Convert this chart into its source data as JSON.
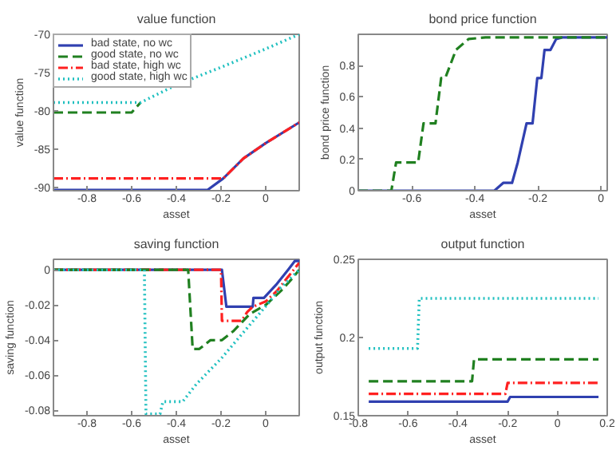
{
  "chart_data": [
    {
      "type": "line",
      "title": "value function",
      "xlabel": "asset",
      "ylabel": "value function",
      "xlim": [
        -0.95,
        0.15
      ],
      "xticks": [
        -0.8,
        -0.6,
        -0.4,
        -0.2,
        0
      ],
      "ylim": [
        -90.4,
        -70
      ],
      "yticks": [
        -90,
        -85,
        -80,
        -75,
        -70
      ],
      "grid": false,
      "legend": "top left",
      "series": [
        {
          "name": "bad state, no wc",
          "color": "#3040b0",
          "line_style": "solid",
          "x": [
            -0.95,
            -0.26,
            -0.19,
            -0.1,
            0,
            0.15
          ],
          "values": [
            -90.3,
            -90.3,
            -88.8,
            -86.2,
            -84.2,
            -81.5
          ]
        },
        {
          "name": "good state, no wc",
          "color": "#208020",
          "line_style": "dashed",
          "x": [
            -0.95,
            -0.6,
            -0.56
          ],
          "values": [
            -80.2,
            -80.2,
            -78.9
          ]
        },
        {
          "name": "bad state, high wc",
          "color": "#ff2020",
          "line_style": "dashdot",
          "x": [
            -0.95,
            -0.19,
            -0.1,
            0,
            0.15
          ],
          "values": [
            -88.8,
            -88.8,
            -86.2,
            -84.2,
            -81.5
          ]
        },
        {
          "name": "good state, high wc",
          "color": "#20c0c0",
          "line_style": "dotted",
          "x": [
            -0.95,
            -0.56,
            -0.4,
            -0.2,
            0,
            0.15
          ],
          "values": [
            -78.9,
            -78.9,
            -76.6,
            -74.3,
            -71.9,
            -70
          ]
        }
      ]
    },
    {
      "type": "line",
      "title": "bond price function",
      "xlabel": "asset",
      "ylabel": "bond price function",
      "xlim": [
        -0.77,
        0.02
      ],
      "xticks": [
        -0.6,
        -0.4,
        -0.2,
        0
      ],
      "ylim": [
        0,
        1
      ],
      "yticks": [
        0,
        0.2,
        0.4,
        0.6,
        0.8
      ],
      "grid": false,
      "series": [
        {
          "color": "#3040b0",
          "line_style": "solid",
          "x": [
            -0.77,
            -0.338,
            -0.31,
            -0.282,
            -0.264,
            -0.236,
            -0.217,
            -0.202,
            -0.189,
            -0.179,
            -0.16,
            -0.142,
            -0.123,
            0.02
          ],
          "values": [
            0,
            0,
            0.05,
            0.05,
            0.18,
            0.43,
            0.43,
            0.72,
            0.72,
            0.9,
            0.9,
            0.97,
            0.98,
            0.98
          ]
        },
        {
          "color": "#208020",
          "line_style": "dashed",
          "x": [
            -0.77,
            -0.665,
            -0.65,
            -0.58,
            -0.563,
            -0.525,
            -0.507,
            -0.494,
            -0.46,
            -0.42,
            -0.366,
            0.02
          ],
          "values": [
            0,
            0,
            0.18,
            0.18,
            0.43,
            0.43,
            0.72,
            0.72,
            0.9,
            0.97,
            0.98,
            0.98
          ]
        }
      ]
    },
    {
      "type": "line",
      "title": "saving function",
      "xlabel": "asset",
      "ylabel": "saving function",
      "xlim": [
        -0.95,
        0.15
      ],
      "xticks": [
        -0.8,
        -0.6,
        -0.4,
        -0.2,
        0
      ],
      "ylim": [
        -0.083,
        0.006
      ],
      "yticks": [
        -0.08,
        -0.06,
        -0.04,
        -0.02,
        0
      ],
      "grid": false,
      "series": [
        {
          "color": "#3040b0",
          "line_style": "solid",
          "x": [
            -0.95,
            -0.196,
            -0.176,
            -0.058,
            -0.055,
            -0.008,
            0.05,
            0.1,
            0.13,
            0.15
          ],
          "values": [
            0,
            0,
            -0.021,
            -0.021,
            -0.016,
            -0.016,
            -0.008,
            0,
            0.005,
            0.005
          ]
        },
        {
          "color": "#ff2020",
          "line_style": "dashdot",
          "x": [
            -0.95,
            -0.2,
            -0.196,
            -0.108,
            -0.083,
            -0.058,
            0,
            0.05,
            0.1,
            0.15
          ],
          "values": [
            0,
            0,
            -0.029,
            -0.029,
            -0.024,
            -0.021,
            -0.018,
            -0.012,
            -0.004,
            0.004
          ]
        },
        {
          "color": "#208020",
          "line_style": "dashed",
          "x": [
            -0.95,
            -0.347,
            -0.327,
            -0.297,
            -0.247,
            -0.196,
            -0.146,
            -0.108,
            -0.07,
            0,
            0.068,
            0.118,
            0.15
          ],
          "values": [
            0,
            0,
            -0.045,
            -0.045,
            -0.04,
            -0.04,
            -0.035,
            -0.03,
            -0.025,
            -0.02,
            -0.012,
            -0.005,
            0
          ]
        },
        {
          "color": "#20c0c0",
          "line_style": "dotted",
          "x": [
            -0.95,
            -0.543,
            -0.536,
            -0.473,
            -0.46,
            -0.372,
            -0.31,
            -0.196,
            -0.096,
            0.005,
            0.068,
            0.15
          ],
          "values": [
            0,
            0,
            -0.082,
            -0.082,
            -0.075,
            -0.075,
            -0.065,
            -0.05,
            -0.035,
            -0.02,
            -0.01,
            0
          ]
        }
      ]
    },
    {
      "type": "line",
      "title": "output function",
      "xlabel": "asset",
      "ylabel": "output function",
      "xlim": [
        -0.8,
        0.2
      ],
      "xticks": [
        -0.8,
        -0.6,
        -0.4,
        -0.2,
        0,
        0.2
      ],
      "ylim": [
        0.15,
        0.25
      ],
      "yticks": [
        0.15,
        0.2,
        0.25
      ],
      "grid": false,
      "series": [
        {
          "color": "#3040b0",
          "line_style": "solid",
          "x": [
            -0.758,
            -0.2,
            -0.19,
            0.165
          ],
          "values": [
            0.159,
            0.159,
            0.162,
            0.162
          ]
        },
        {
          "color": "#ff2020",
          "line_style": "dashdot",
          "x": [
            -0.758,
            -0.209,
            -0.2,
            0.165
          ],
          "values": [
            0.164,
            0.164,
            0.171,
            0.171
          ]
        },
        {
          "color": "#208020",
          "line_style": "dashed",
          "x": [
            -0.758,
            -0.343,
            -0.335,
            0.165
          ],
          "values": [
            0.172,
            0.172,
            0.186,
            0.186
          ]
        },
        {
          "color": "#20c0c0",
          "line_style": "dotted",
          "x": [
            -0.758,
            -0.562,
            -0.555,
            0.165
          ],
          "values": [
            0.193,
            0.193,
            0.225,
            0.225
          ]
        }
      ]
    }
  ]
}
